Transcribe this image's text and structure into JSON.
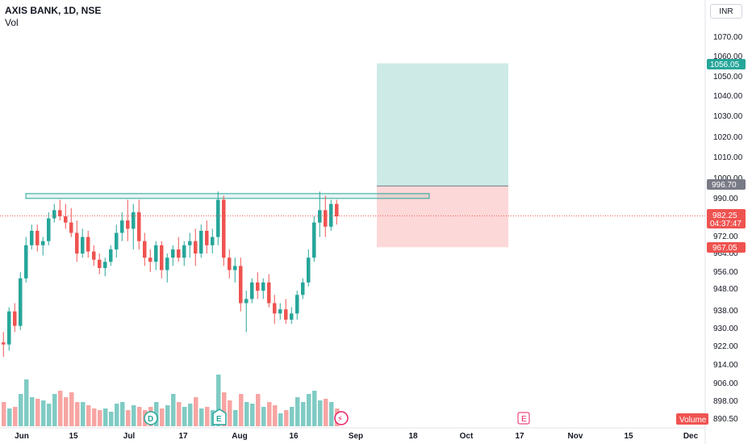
{
  "header": {
    "title": "AXIS BANK, 1D, NSE",
    "indicator": "Vol",
    "currency_button": "INR"
  },
  "colors": {
    "up": "#26a69a",
    "down": "#ef5350",
    "vol_up": "#80cbc4",
    "vol_down": "#f7a5a3",
    "target_zone": "#cdeae7",
    "stop_zone": "#fdd8d8",
    "resistance": "#26a69a"
  },
  "price_axis": {
    "ticks": [
      "1070.00",
      "1060.00",
      "1050.00",
      "1040.00",
      "1030.00",
      "1020.00",
      "1010.00",
      "1000.00",
      "990.00",
      "972.00",
      "964.00",
      "956.00",
      "948.00",
      "938.00",
      "930.00",
      "922.00",
      "914.00",
      "906.00",
      "898.00",
      "890.50"
    ]
  },
  "time_axis": {
    "ticks": [
      "Jun",
      "15",
      "Jul",
      "17",
      "Aug",
      "16",
      "Sep",
      "18",
      "Oct",
      "17",
      "Nov",
      "15",
      "Dec"
    ]
  },
  "price_tags": {
    "target": "1056.05",
    "entry": "996.70",
    "last": "982.25",
    "countdown": "04:37:47",
    "stop": "967.05",
    "volume": "Volume"
  },
  "event_markers": {
    "dividend": "D",
    "earnings": "E",
    "split": "⚡",
    "earnings_future": "E"
  },
  "chart_data": {
    "type": "candlestick",
    "title": "AXIS BANK, 1D, NSE",
    "candles": [
      [
        921,
        926,
        914,
        920
      ],
      [
        920,
        938,
        917,
        936
      ],
      [
        936,
        940,
        926,
        929
      ],
      [
        929,
        955,
        927,
        952
      ],
      [
        952,
        972,
        950,
        968
      ],
      [
        968,
        978,
        966,
        975
      ],
      [
        975,
        978,
        965,
        968
      ],
      [
        968,
        972,
        963,
        970
      ],
      [
        970,
        984,
        968,
        981
      ],
      [
        981,
        988,
        979,
        985
      ],
      [
        985,
        990,
        980,
        982
      ],
      [
        982,
        988,
        976,
        979
      ],
      [
        979,
        986,
        972,
        974
      ],
      [
        974,
        980,
        960,
        964
      ],
      [
        964,
        976,
        962,
        972
      ],
      [
        972,
        975,
        962,
        965
      ],
      [
        965,
        968,
        958,
        961
      ],
      [
        961,
        964,
        954,
        957
      ],
      [
        957,
        962,
        953,
        960
      ],
      [
        960,
        968,
        958,
        966
      ],
      [
        966,
        978,
        962,
        974
      ],
      [
        974,
        984,
        970,
        980
      ],
      [
        980,
        990,
        970,
        976
      ],
      [
        976,
        988,
        966,
        984
      ],
      [
        984,
        990,
        966,
        970
      ],
      [
        970,
        974,
        958,
        962
      ],
      [
        962,
        966,
        955,
        960
      ],
      [
        960,
        970,
        956,
        968
      ],
      [
        968,
        970,
        952,
        956
      ],
      [
        956,
        964,
        950,
        962
      ],
      [
        962,
        968,
        958,
        966
      ],
      [
        966,
        972,
        960,
        962
      ],
      [
        962,
        970,
        958,
        968
      ],
      [
        968,
        974,
        962,
        970
      ],
      [
        970,
        976,
        958,
        964
      ],
      [
        964,
        978,
        962,
        975
      ],
      [
        975,
        980,
        964,
        968
      ],
      [
        968,
        976,
        964,
        972
      ],
      [
        972,
        994,
        968,
        990
      ],
      [
        990,
        992,
        958,
        962
      ],
      [
        962,
        966,
        952,
        956
      ],
      [
        956,
        962,
        950,
        958
      ],
      [
        958,
        962,
        936,
        940
      ],
      [
        940,
        946,
        926,
        942
      ],
      [
        942,
        952,
        940,
        950
      ],
      [
        950,
        955,
        942,
        946
      ],
      [
        946,
        952,
        942,
        950
      ],
      [
        950,
        954,
        938,
        940
      ],
      [
        940,
        944,
        930,
        935
      ],
      [
        935,
        940,
        932,
        937
      ],
      [
        937,
        942,
        930,
        932
      ],
      [
        932,
        938,
        930,
        935
      ],
      [
        935,
        946,
        932,
        944
      ],
      [
        944,
        952,
        942,
        950
      ],
      [
        950,
        966,
        948,
        962
      ],
      [
        962,
        982,
        960,
        979
      ],
      [
        979,
        994,
        972,
        985
      ],
      [
        985,
        992,
        972,
        977
      ],
      [
        977,
        990,
        975,
        988
      ],
      [
        988,
        990,
        978,
        982
      ]
    ],
    "volumes": [
      0.3,
      0.22,
      0.24,
      0.4,
      0.58,
      0.36,
      0.34,
      0.32,
      0.28,
      0.4,
      0.44,
      0.36,
      0.42,
      0.3,
      0.3,
      0.26,
      0.22,
      0.2,
      0.22,
      0.18,
      0.28,
      0.3,
      0.2,
      0.26,
      0.24,
      0.2,
      0.24,
      0.3,
      0.22,
      0.26,
      0.4,
      0.3,
      0.24,
      0.28,
      0.36,
      0.22,
      0.24,
      0.2,
      0.64,
      0.42,
      0.32,
      0.2,
      0.4,
      0.3,
      0.28,
      0.4,
      0.24,
      0.3,
      0.26,
      0.16,
      0.2,
      0.24,
      0.36,
      0.3,
      0.4,
      0.44,
      0.32,
      0.34,
      0.3,
      0.22
    ],
    "resistance_level": 990.5,
    "position": {
      "entry": 996.7,
      "target": 1056.05,
      "stop": 967.05
    },
    "last_price": 982.25
  }
}
